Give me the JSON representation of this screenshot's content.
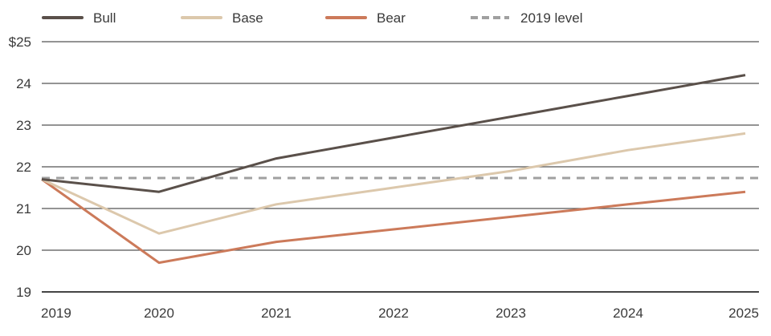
{
  "chart_data": {
    "type": "line",
    "title": "",
    "xlabel": "",
    "ylabel": "",
    "x": [
      "2019",
      "2020",
      "2021",
      "2022",
      "2023",
      "2024",
      "2025"
    ],
    "ylim": [
      19,
      25
    ],
    "yticks": [
      19,
      20,
      21,
      22,
      23,
      24,
      25
    ],
    "ytick_labels": [
      "19",
      "20",
      "21",
      "22",
      "23",
      "24",
      "$25"
    ],
    "grid": "horizontal",
    "legend_placement": "top",
    "series": [
      {
        "name": "Bull",
        "color": "#5a504a",
        "values": [
          21.7,
          21.4,
          22.2,
          22.7,
          23.2,
          23.7,
          24.2
        ]
      },
      {
        "name": "Base",
        "color": "#dcc8ac",
        "values": [
          21.7,
          20.4,
          21.1,
          21.5,
          21.9,
          22.4,
          22.8
        ]
      },
      {
        "name": "Bear",
        "color": "#cc7a5a",
        "values": [
          21.7,
          19.7,
          20.2,
          20.5,
          20.8,
          21.1,
          21.4
        ]
      }
    ],
    "reference_line": {
      "name": "2019 level",
      "value": 21.73,
      "color": "#a0a0a0",
      "style": "dashed"
    }
  }
}
